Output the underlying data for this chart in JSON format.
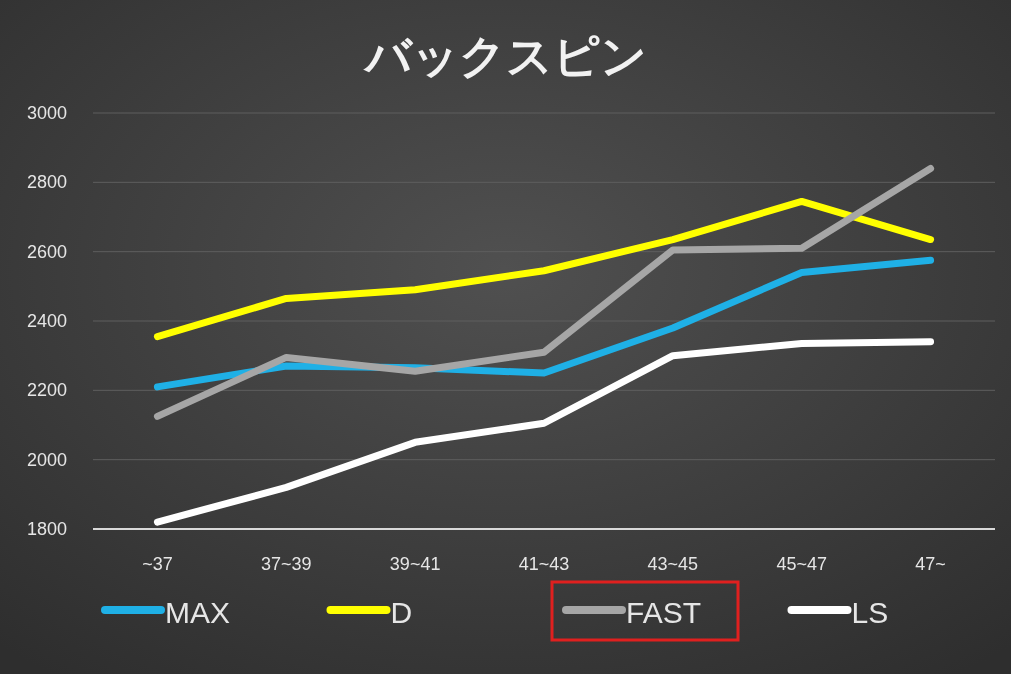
{
  "chart_data": {
    "type": "line",
    "title": "バックスピン",
    "categories": [
      "~37",
      "37~39",
      "39~41",
      "41~43",
      "43~45",
      "45~47",
      "47~"
    ],
    "ylim": [
      1800,
      3000
    ],
    "yticks": [
      1800,
      2000,
      2200,
      2400,
      2600,
      2800,
      3000
    ],
    "grid": "y",
    "legend": "bottom",
    "series": [
      {
        "name": "MAX",
        "color": "#1fb0e6",
        "values": [
          2210,
          2270,
          2265,
          2250,
          2380,
          2540,
          2575
        ]
      },
      {
        "name": "D",
        "color": "#ffff00",
        "values": [
          2355,
          2465,
          2490,
          2545,
          2635,
          2745,
          2635
        ]
      },
      {
        "name": "FAST",
        "color": "#a6a6a6",
        "values": [
          2125,
          2295,
          2255,
          2310,
          2605,
          2610,
          2840
        ]
      },
      {
        "name": "LS",
        "color": "#ffffff",
        "values": [
          1820,
          1920,
          2050,
          2105,
          2300,
          2335,
          2340
        ]
      }
    ]
  }
}
